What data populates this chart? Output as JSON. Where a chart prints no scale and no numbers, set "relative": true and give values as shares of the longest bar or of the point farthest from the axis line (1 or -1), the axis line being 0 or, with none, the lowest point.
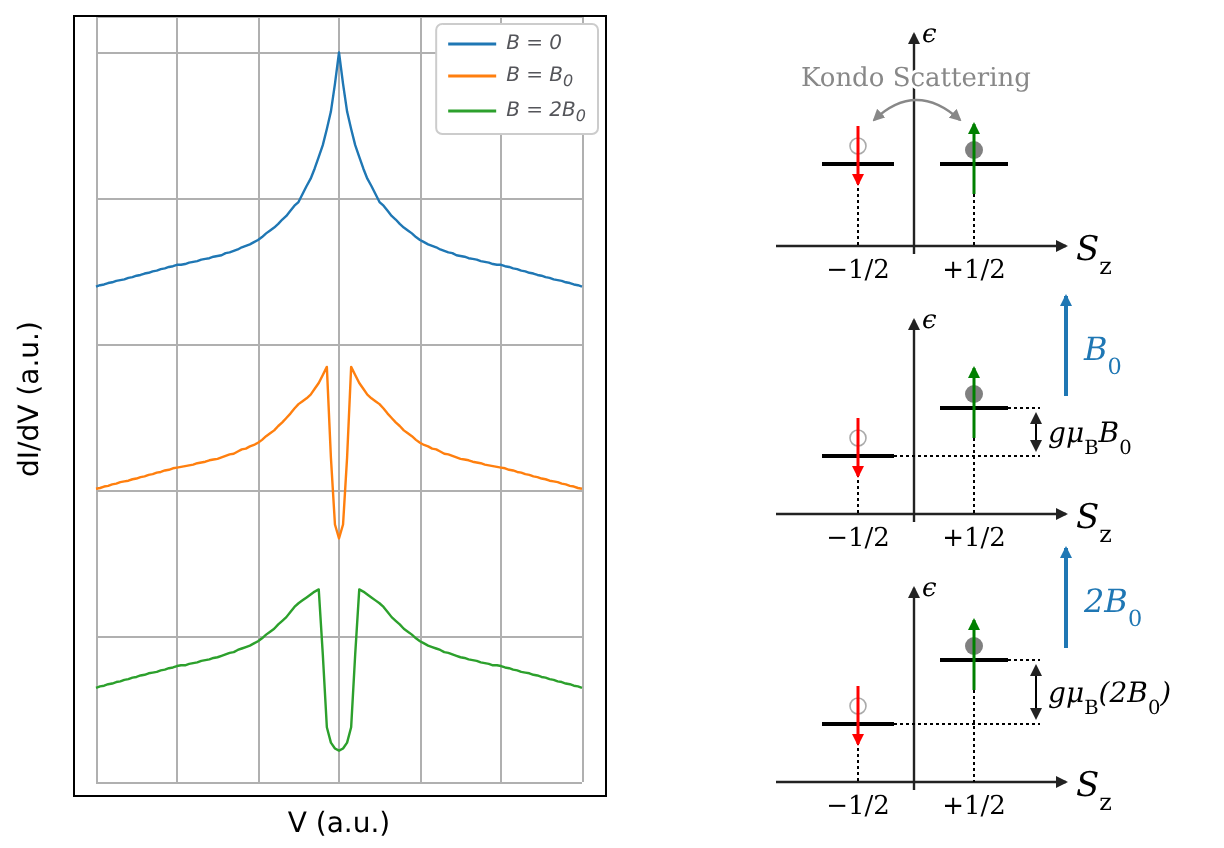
{
  "chart_data": [
    {
      "type": "line",
      "xlabel": "V (a.u.)",
      "ylabel": "dI/dV (a.u.)",
      "relative": true,
      "grid": true,
      "legend": "top right",
      "tick_labels": false,
      "marker": "none",
      "line_style": "solid",
      "categories": [
        null,
        null,
        null,
        null,
        null,
        null,
        null,
        null,
        null,
        null,
        null,
        null,
        null,
        null,
        null,
        null,
        null,
        null,
        null,
        null,
        null,
        null,
        null,
        null,
        null,
        null,
        null,
        null,
        null,
        null,
        null,
        null,
        null,
        null,
        null,
        null,
        null,
        null,
        null,
        null,
        null,
        null,
        null,
        null,
        null,
        null,
        null,
        null,
        null,
        null,
        null,
        null,
        null,
        null,
        null,
        null,
        null,
        null,
        null,
        null,
        null,
        null,
        null,
        null,
        null,
        null,
        null,
        null,
        null,
        null,
        null,
        null,
        null,
        null,
        null,
        null,
        null,
        null,
        null,
        null,
        null,
        null,
        null,
        null,
        null,
        null,
        null,
        null,
        null,
        null,
        null,
        null,
        null,
        null,
        null,
        null,
        null,
        null,
        null,
        null,
        null,
        null,
        null,
        null,
        null,
        null,
        null,
        null,
        null,
        null,
        null,
        null,
        null,
        null,
        null,
        null,
        null,
        null,
        null,
        null,
        null
      ],
      "series": [
        {
          "name": "B = 0",
          "color": "#1f77b4",
          "values": [
            0.679,
            0.681,
            0.682,
            0.684,
            0.685,
            0.687,
            0.688,
            0.689,
            0.691,
            0.692,
            0.694,
            0.695,
            0.697,
            0.698,
            0.7,
            0.701,
            0.703,
            0.704,
            0.706,
            0.707,
            0.709,
            0.709,
            0.71,
            0.712,
            0.713,
            0.714,
            0.716,
            0.717,
            0.718,
            0.72,
            0.721,
            0.722,
            0.725,
            0.726,
            0.728,
            0.73,
            0.733,
            0.735,
            0.737,
            0.74,
            0.743,
            0.747,
            0.752,
            0.756,
            0.76,
            0.765,
            0.771,
            0.776,
            0.783,
            0.79,
            0.795,
            0.806,
            0.817,
            0.827,
            0.841,
            0.857,
            0.873,
            0.895,
            0.919,
            0.957,
            1,
            0.957,
            0.919,
            0.895,
            0.873,
            0.857,
            0.841,
            0.827,
            0.817,
            0.806,
            0.795,
            0.79,
            0.783,
            0.776,
            0.771,
            0.765,
            0.76,
            0.756,
            0.752,
            0.747,
            0.743,
            0.74,
            0.737,
            0.735,
            0.733,
            0.73,
            0.728,
            0.726,
            0.725,
            0.722,
            0.721,
            0.72,
            0.718,
            0.717,
            0.716,
            0.714,
            0.713,
            0.712,
            0.71,
            0.709,
            0.709,
            0.707,
            0.706,
            0.704,
            0.703,
            0.701,
            0.7,
            0.698,
            0.697,
            0.695,
            0.694,
            0.692,
            0.691,
            0.689,
            0.688,
            0.687,
            0.685,
            0.684,
            0.682,
            0.681,
            0.679
          ]
        },
        {
          "name": "B = B$_{0}$",
          "color": "#ff7f0e",
          "values": [
            0.402,
            0.403,
            0.405,
            0.406,
            0.408,
            0.409,
            0.411,
            0.412,
            0.413,
            0.415,
            0.416,
            0.418,
            0.419,
            0.421,
            0.422,
            0.424,
            0.425,
            0.427,
            0.428,
            0.43,
            0.431,
            0.432,
            0.433,
            0.434,
            0.435,
            0.437,
            0.438,
            0.439,
            0.441,
            0.442,
            0.443,
            0.445,
            0.447,
            0.449,
            0.45,
            0.453,
            0.456,
            0.457,
            0.46,
            0.462,
            0.465,
            0.469,
            0.474,
            0.478,
            0.482,
            0.488,
            0.493,
            0.499,
            0.505,
            0.512,
            0.518,
            0.522,
            0.526,
            0.531,
            0.539,
            0.547,
            0.558,
            0.569,
            0.445,
            0.353,
            0.334,
            0.353,
            0.445,
            0.569,
            0.558,
            0.547,
            0.539,
            0.531,
            0.526,
            0.522,
            0.518,
            0.512,
            0.505,
            0.499,
            0.493,
            0.488,
            0.482,
            0.478,
            0.474,
            0.469,
            0.465,
            0.462,
            0.46,
            0.457,
            0.456,
            0.453,
            0.45,
            0.449,
            0.447,
            0.445,
            0.443,
            0.442,
            0.441,
            0.439,
            0.438,
            0.437,
            0.435,
            0.434,
            0.433,
            0.432,
            0.431,
            0.43,
            0.428,
            0.427,
            0.425,
            0.424,
            0.422,
            0.421,
            0.419,
            0.418,
            0.416,
            0.415,
            0.413,
            0.412,
            0.411,
            0.409,
            0.408,
            0.406,
            0.405,
            0.403,
            0.402
          ]
        },
        {
          "name": "B = 2B$_{0}$",
          "color": "#2ca02c",
          "values": [
            0.129,
            0.131,
            0.132,
            0.134,
            0.135,
            0.137,
            0.138,
            0.14,
            0.141,
            0.143,
            0.144,
            0.146,
            0.147,
            0.149,
            0.15,
            0.151,
            0.153,
            0.154,
            0.156,
            0.157,
            0.159,
            0.16,
            0.16,
            0.162,
            0.163,
            0.164,
            0.166,
            0.167,
            0.168,
            0.17,
            0.171,
            0.173,
            0.175,
            0.177,
            0.178,
            0.181,
            0.183,
            0.185,
            0.187,
            0.19,
            0.193,
            0.197,
            0.202,
            0.206,
            0.21,
            0.216,
            0.221,
            0.226,
            0.233,
            0.24,
            0.245,
            0.249,
            0.253,
            0.257,
            0.261,
            0.264,
            0.175,
            0.075,
            0.054,
            0.046,
            0.043,
            0.046,
            0.054,
            0.075,
            0.175,
            0.264,
            0.261,
            0.257,
            0.253,
            0.249,
            0.245,
            0.24,
            0.233,
            0.226,
            0.221,
            0.216,
            0.21,
            0.206,
            0.202,
            0.197,
            0.193,
            0.19,
            0.187,
            0.185,
            0.183,
            0.181,
            0.178,
            0.177,
            0.175,
            0.173,
            0.171,
            0.17,
            0.168,
            0.167,
            0.166,
            0.164,
            0.163,
            0.162,
            0.16,
            0.16,
            0.159,
            0.157,
            0.156,
            0.154,
            0.153,
            0.151,
            0.15,
            0.149,
            0.147,
            0.146,
            0.144,
            0.143,
            0.141,
            0.14,
            0.138,
            0.137,
            0.135,
            0.134,
            0.132,
            0.131,
            0.129
          ]
        }
      ]
    },
    {
      "type": "other",
      "annotations": [
        "Kondo Scattering",
        "ϵ",
        "−1/2",
        "+1/2",
        "S$_{z}$",
        "ϵ",
        "−1/2",
        "+1/2",
        "S$_{z}$",
        "B$_{0}$",
        "gμ$_{B}$B$_{0}$",
        "ϵ",
        "−1/2",
        "+1/2",
        "S$_{z}$",
        "2B$_{0}$",
        "gμ$_{B}$(2B$_{0}$)"
      ]
    }
  ]
}
